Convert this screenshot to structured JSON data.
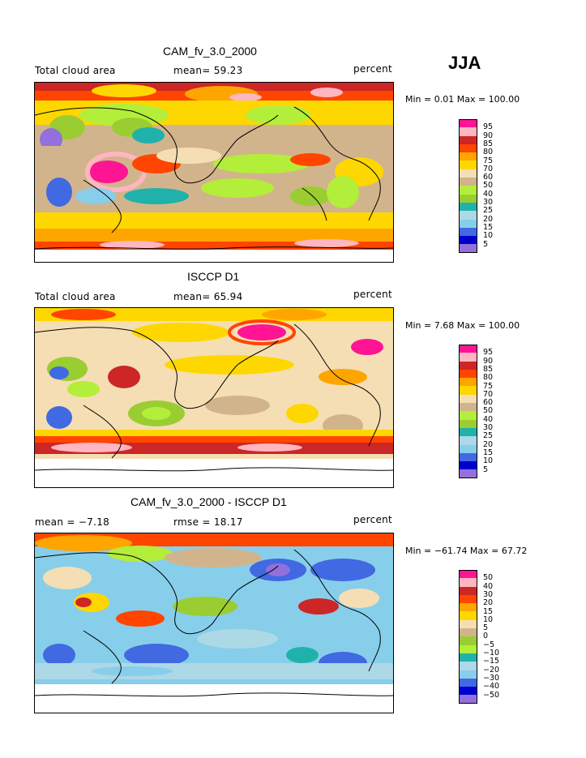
{
  "season": "JJA",
  "levels_abs": [
    "95",
    "90",
    "85",
    "80",
    "75",
    "70",
    "60",
    "50",
    "40",
    "30",
    "25",
    "20",
    "15",
    "10",
    "5"
  ],
  "colors_abs": [
    "#ff1493",
    "#ffb6c1",
    "#cd2626",
    "#ff4500",
    "#ffa500",
    "#ffd700",
    "#f5deb3",
    "#d2b48c",
    "#b3ee3a",
    "#9acd32",
    "#20b2aa",
    "#add8e6",
    "#87ceeb",
    "#4169e1",
    "#0000cd",
    "#9370db"
  ],
  "levels_diff": [
    "50",
    "40",
    "30",
    "20",
    "15",
    "10",
    "5",
    "0",
    "−5",
    "−10",
    "−15",
    "−20",
    "−30",
    "−40",
    "−50"
  ],
  "colors_diff": [
    "#ff1493",
    "#ffb6c1",
    "#cd2626",
    "#ff4500",
    "#ffa500",
    "#ffd700",
    "#f5deb3",
    "#d2b48c",
    "#9acd32",
    "#b3ee3a",
    "#20b2aa",
    "#add8e6",
    "#87ceeb",
    "#4169e1",
    "#0000cd",
    "#9370db"
  ],
  "panels": [
    {
      "title": "CAM_fv_3.0_2000",
      "left_label": "Total cloud area",
      "mean_label": "mean=  59.23",
      "units": "percent",
      "minmax": "Min =    0.01 Max = 100.00"
    },
    {
      "title": "ISCCP D1",
      "left_label": "Total cloud area",
      "mean_label": "mean=  65.94",
      "units": "percent",
      "minmax": "Min =    7.68 Max = 100.00"
    },
    {
      "title": "CAM_fv_3.0_2000 - ISCCP D1",
      "left_label": "mean =   −7.18",
      "mean_label": "rmse =   18.17",
      "units": "percent",
      "minmax": "Min = −61.74 Max =   67.72"
    }
  ]
}
